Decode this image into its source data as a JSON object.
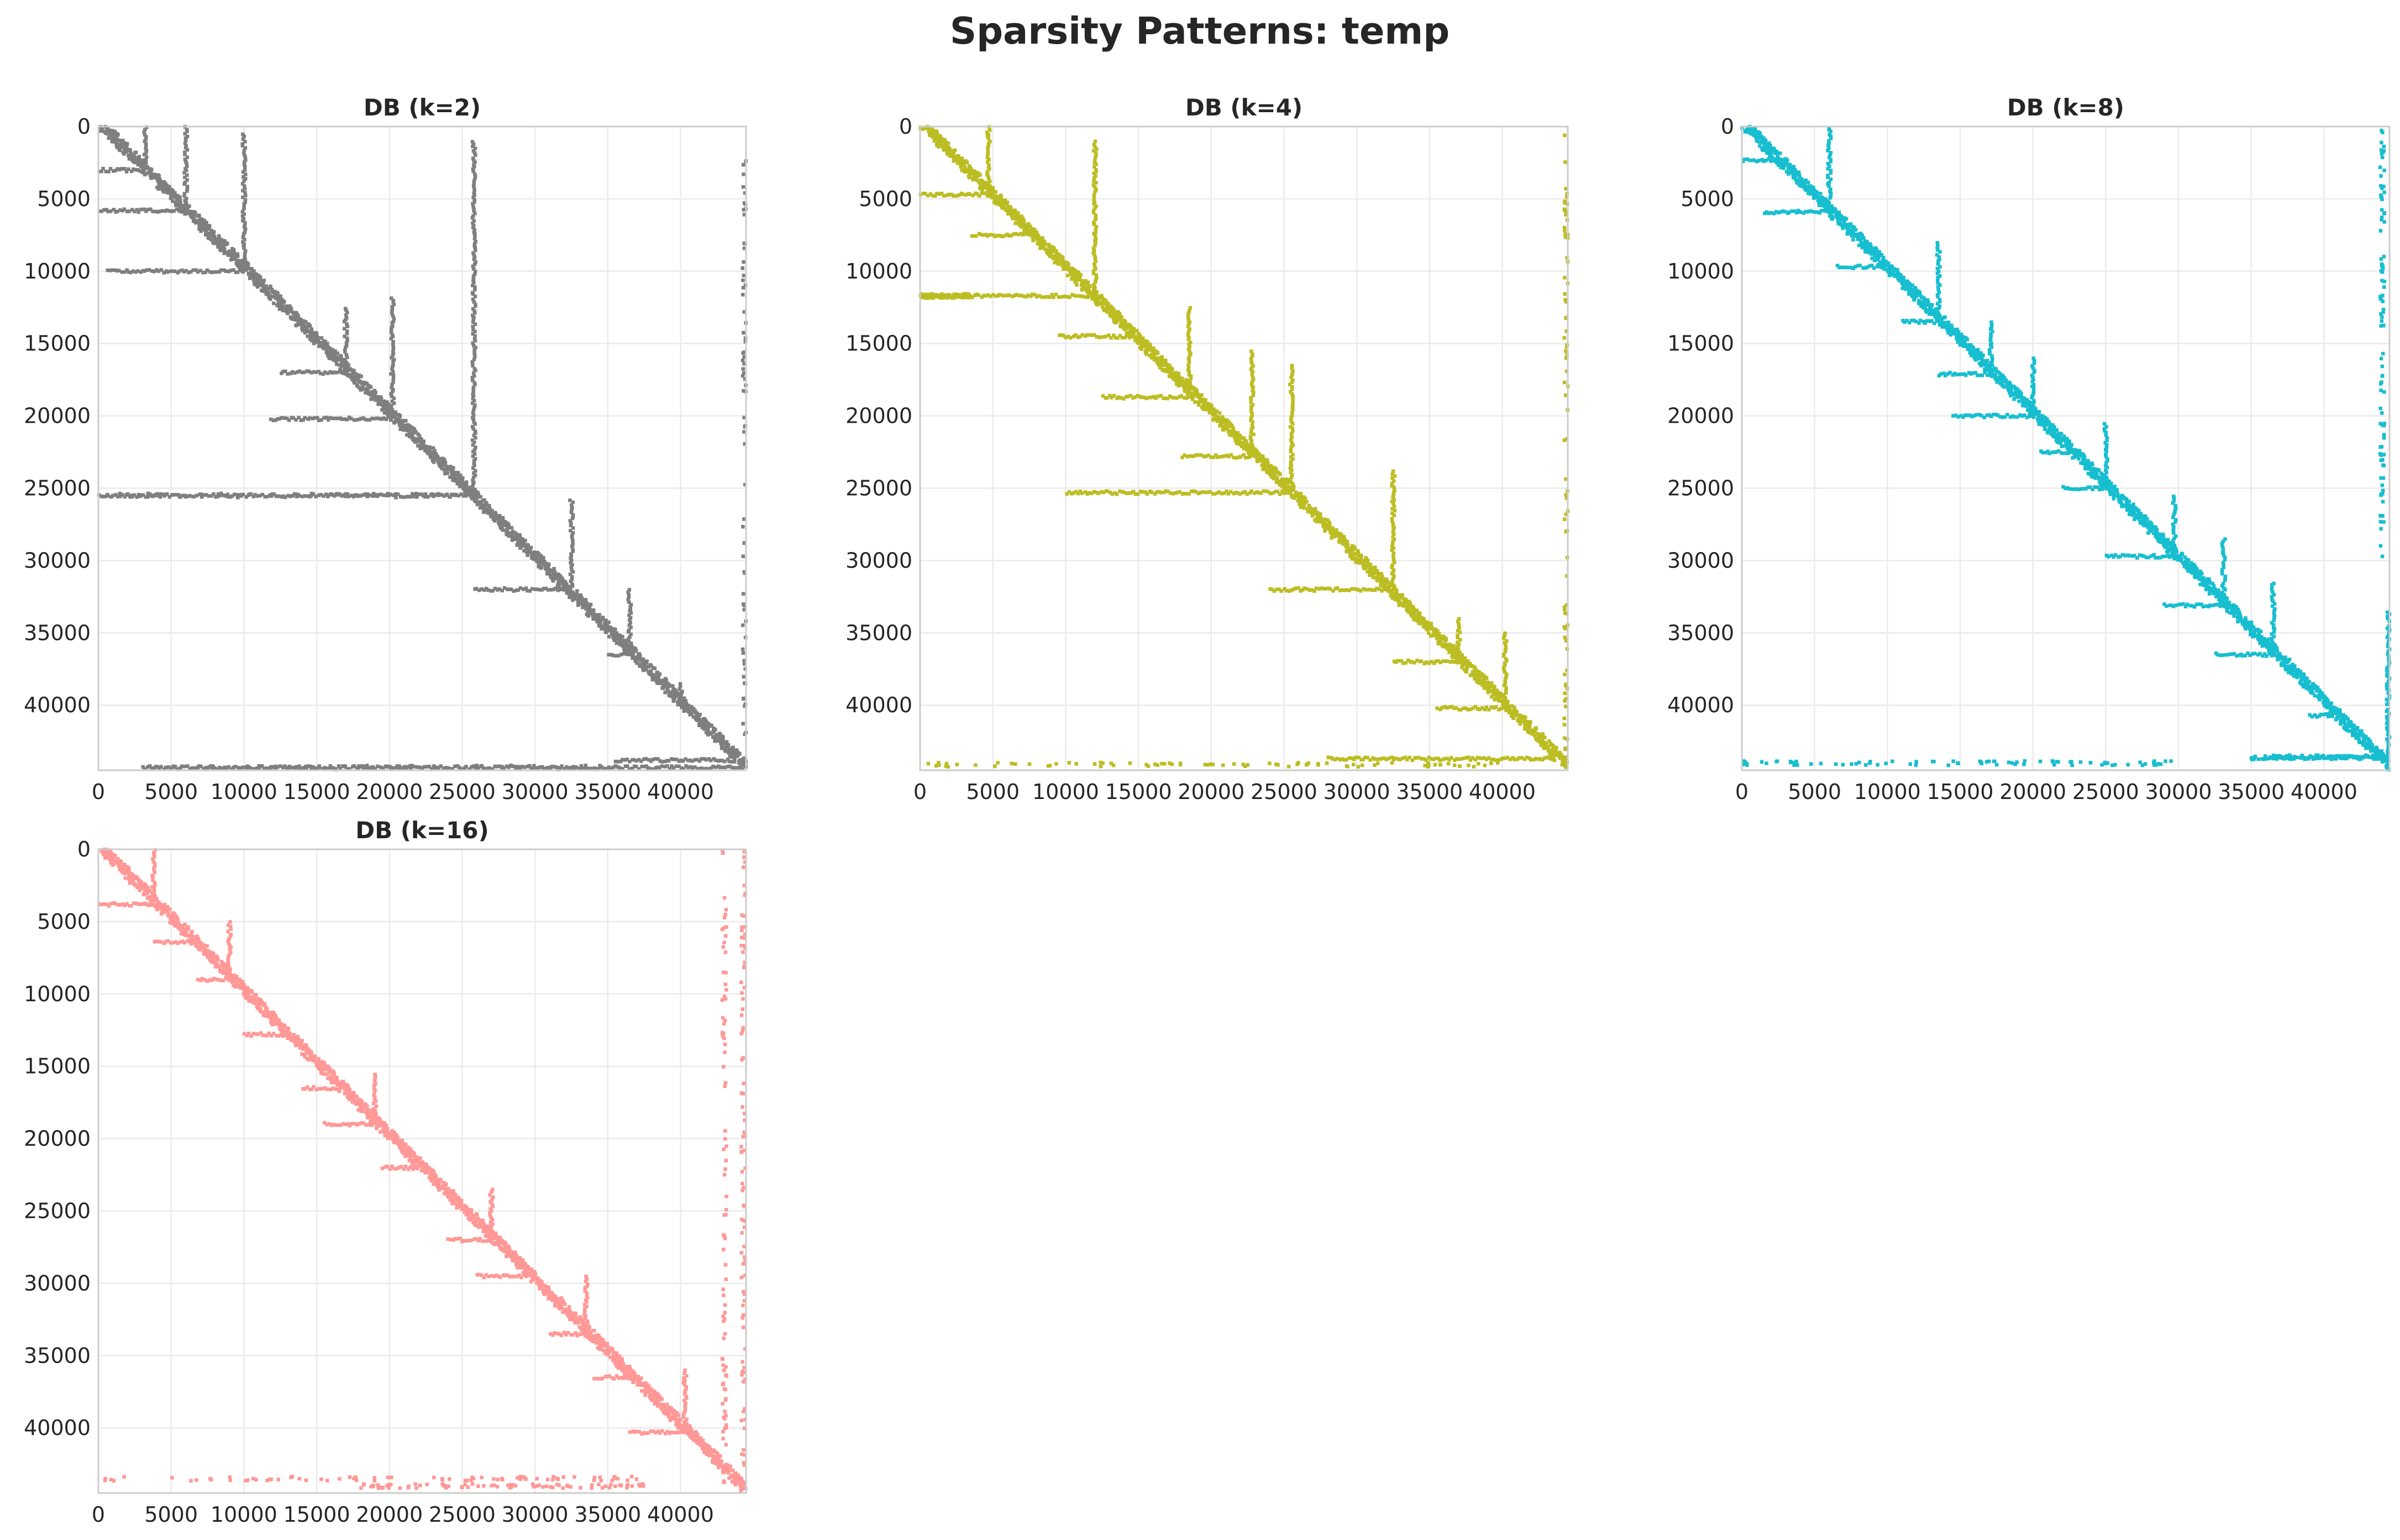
{
  "figure": {
    "title": "Sparsity Patterns: temp"
  },
  "chart_data": [
    {
      "type": "scatter",
      "title": "DB (k=2)",
      "color": "#7f7f7f",
      "xlim": [
        0,
        44500
      ],
      "ylim": [
        44500,
        0
      ],
      "xticks": [
        0,
        5000,
        10000,
        15000,
        20000,
        25000,
        30000,
        35000,
        40000
      ],
      "yticks": [
        0,
        5000,
        10000,
        15000,
        20000,
        25000,
        30000,
        35000,
        40000
      ],
      "xtick_labels": [
        "0",
        "5000",
        "10000",
        "15000",
        "20000",
        "25000",
        "30000",
        "35000",
        "40000"
      ],
      "ytick_labels": [
        "0",
        "5000",
        "10000",
        "15000",
        "20000",
        "25000",
        "30000",
        "35000",
        "40000"
      ],
      "grid": true,
      "pattern": {
        "diagonal": [
          [
            0,
            0
          ],
          [
            44500,
            44500
          ]
        ],
        "hspurs": [
          [
            3000,
            0,
            3000
          ],
          [
            5800,
            0,
            5800
          ],
          [
            10000,
            600,
            10000
          ],
          [
            17000,
            12500,
            17000
          ],
          [
            20200,
            11800,
            20200
          ],
          [
            25500,
            0,
            25500
          ],
          [
            32000,
            25800,
            32000
          ],
          [
            36500,
            35000,
            36500
          ],
          [
            43800,
            35500,
            43800
          ],
          [
            44300,
            3000,
            44300
          ]
        ],
        "vspurs": [
          [
            3200,
            0,
            3200
          ],
          [
            6000,
            0,
            6000
          ],
          [
            10000,
            500,
            10000
          ],
          [
            17000,
            12500,
            17000
          ],
          [
            20200,
            11800,
            20200
          ],
          [
            25800,
            1000,
            25800
          ],
          [
            32500,
            25800,
            32500
          ],
          [
            36500,
            32000,
            36500
          ],
          [
            40000,
            38500,
            40000
          ]
        ],
        "hspeckle": [
          [
            25500,
            500,
            25000
          ],
          [
            44300,
            3000,
            35000
          ]
        ],
        "vspeckle": [
          [
            44400,
            2000,
            44000
          ]
        ]
      }
    },
    {
      "type": "scatter",
      "title": "DB (k=4)",
      "color": "#bcbd22",
      "xlim": [
        0,
        44500
      ],
      "ylim": [
        44500,
        0
      ],
      "xticks": [
        0,
        5000,
        10000,
        15000,
        20000,
        25000,
        30000,
        35000,
        40000
      ],
      "yticks": [
        0,
        5000,
        10000,
        15000,
        20000,
        25000,
        30000,
        35000,
        40000
      ],
      "xtick_labels": [
        "0",
        "5000",
        "10000",
        "15000",
        "20000",
        "25000",
        "30000",
        "35000",
        "40000"
      ],
      "ytick_labels": [
        "0",
        "5000",
        "10000",
        "15000",
        "20000",
        "25000",
        "30000",
        "35000",
        "40000"
      ],
      "grid": true,
      "pattern": {
        "diagonal": [
          [
            0,
            0
          ],
          [
            44500,
            44500
          ]
        ],
        "hspurs": [
          [
            4700,
            0,
            4700
          ],
          [
            7500,
            3500,
            7500
          ],
          [
            11700,
            0,
            11700
          ],
          [
            14500,
            9500,
            14500
          ],
          [
            18700,
            12500,
            18700
          ],
          [
            22800,
            18000,
            22800
          ],
          [
            25300,
            10000,
            25300
          ],
          [
            32000,
            24000,
            32000
          ],
          [
            37000,
            32500,
            37000
          ],
          [
            40200,
            35500,
            40200
          ],
          [
            43700,
            28000,
            43700
          ]
        ],
        "vspurs": [
          [
            4700,
            0,
            4700
          ],
          [
            12000,
            1000,
            12000
          ],
          [
            18500,
            12500,
            18500
          ],
          [
            22800,
            15500,
            22800
          ],
          [
            25500,
            16500,
            25500
          ],
          [
            32500,
            23800,
            32500
          ],
          [
            37000,
            34000,
            37000
          ],
          [
            40200,
            35000,
            40200
          ]
        ],
        "hspeckle": [
          [
            44100,
            0,
            40000
          ],
          [
            11700,
            0,
            3500
          ]
        ],
        "vspeckle": [
          [
            44400,
            0,
            44000
          ]
        ]
      }
    },
    {
      "type": "scatter",
      "title": "DB (k=8)",
      "color": "#17becf",
      "xlim": [
        0,
        44500
      ],
      "ylim": [
        44500,
        0
      ],
      "xticks": [
        0,
        5000,
        10000,
        15000,
        20000,
        25000,
        30000,
        35000,
        40000
      ],
      "yticks": [
        0,
        5000,
        10000,
        15000,
        20000,
        25000,
        30000,
        35000,
        40000
      ],
      "xtick_labels": [
        "0",
        "5000",
        "10000",
        "15000",
        "20000",
        "25000",
        "30000",
        "35000",
        "40000"
      ],
      "ytick_labels": [
        "0",
        "5000",
        "10000",
        "15000",
        "20000",
        "25000",
        "30000",
        "35000",
        "40000"
      ],
      "grid": true,
      "pattern": {
        "diagonal": [
          [
            0,
            0
          ],
          [
            44500,
            44500
          ]
        ],
        "hspurs": [
          [
            2300,
            0,
            2300
          ],
          [
            5900,
            1500,
            5900
          ],
          [
            9700,
            6500,
            9700
          ],
          [
            13500,
            11000,
            13500
          ],
          [
            17100,
            13500,
            17100
          ],
          [
            20000,
            14500,
            20000
          ],
          [
            22500,
            20500,
            22500
          ],
          [
            25000,
            22000,
            25000
          ],
          [
            29700,
            25000,
            29700
          ],
          [
            33100,
            29000,
            33100
          ],
          [
            36500,
            32500,
            36500
          ],
          [
            40700,
            39000,
            40700
          ],
          [
            43600,
            36000,
            43600
          ]
        ],
        "vspurs": [
          [
            6000,
            0,
            6000
          ],
          [
            13500,
            8000,
            13500
          ],
          [
            17100,
            13500,
            17100
          ],
          [
            20000,
            16000,
            20000
          ],
          [
            25000,
            20500,
            25000
          ],
          [
            29700,
            25500,
            29700
          ],
          [
            33100,
            28500,
            33100
          ],
          [
            36500,
            31500,
            36500
          ],
          [
            44400,
            33500,
            44400
          ]
        ],
        "hspeckle": [
          [
            44000,
            0,
            30000
          ],
          [
            43600,
            35000,
            44000
          ]
        ],
        "vspeckle": [
          [
            44000,
            0,
            30000
          ]
        ]
      }
    },
    {
      "type": "scatter",
      "title": "DB (k=16)",
      "color": "#ff9896",
      "xlim": [
        0,
        44500
      ],
      "ylim": [
        44500,
        0
      ],
      "xticks": [
        0,
        5000,
        10000,
        15000,
        20000,
        25000,
        30000,
        35000,
        40000
      ],
      "yticks": [
        0,
        5000,
        10000,
        15000,
        20000,
        25000,
        30000,
        35000,
        40000
      ],
      "xtick_labels": [
        "0",
        "5000",
        "10000",
        "15000",
        "20000",
        "25000",
        "30000",
        "35000",
        "40000"
      ],
      "ytick_labels": [
        "0",
        "5000",
        "10000",
        "15000",
        "20000",
        "25000",
        "30000",
        "35000",
        "40000"
      ],
      "grid": true,
      "pattern": {
        "diagonal": [
          [
            0,
            0
          ],
          [
            44500,
            44500
          ]
        ],
        "hspurs": [
          [
            3800,
            0,
            3800
          ],
          [
            6400,
            3800,
            6400
          ],
          [
            9000,
            6800,
            9000
          ],
          [
            12800,
            10000,
            12800
          ],
          [
            16500,
            14000,
            16500
          ],
          [
            19000,
            15500,
            19000
          ],
          [
            22000,
            19500,
            22000
          ],
          [
            27000,
            24000,
            27000
          ],
          [
            29500,
            26000,
            29500
          ],
          [
            33500,
            31000,
            33500
          ],
          [
            36500,
            34000,
            36500
          ],
          [
            40300,
            36500,
            40300
          ]
        ],
        "vspurs": [
          [
            3800,
            0,
            3800
          ],
          [
            9000,
            5000,
            9000
          ],
          [
            19000,
            15500,
            19000
          ],
          [
            27000,
            23500,
            27000
          ],
          [
            33500,
            29500,
            33500
          ],
          [
            40300,
            36000,
            40300
          ]
        ],
        "hspeckle": [
          [
            43500,
            0,
            38000
          ],
          [
            44000,
            18000,
            38000
          ]
        ],
        "vspeckle": [
          [
            43000,
            0,
            44000
          ],
          [
            44300,
            0,
            44000
          ]
        ]
      }
    }
  ]
}
